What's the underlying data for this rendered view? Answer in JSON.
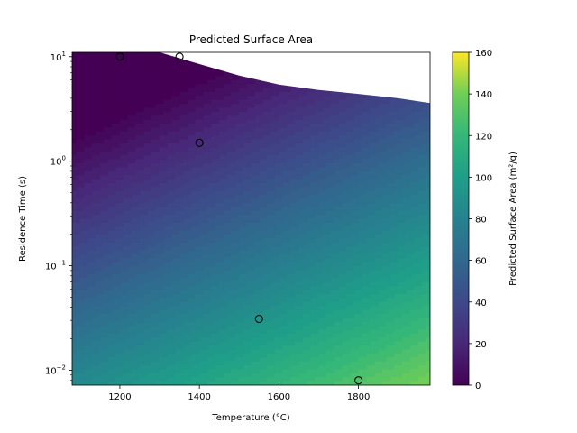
{
  "chart_data": {
    "type": "heatmap",
    "subtype": "filled-contour",
    "title": "Predicted Surface Area",
    "xlabel": "Temperature (°C)",
    "ylabel": "Residence Time (s)",
    "colorbar_label": "Predicted Surface Area (m²/g)",
    "xlim": [
      1080,
      1980
    ],
    "ylim": [
      0.0072,
      11
    ],
    "yscale": "log",
    "x_ticks": [
      1200,
      1400,
      1600,
      1800
    ],
    "x_tick_labels": [
      "1200",
      "1400",
      "1600",
      "1800"
    ],
    "y_ticks": [
      0.01,
      0.1,
      1,
      10
    ],
    "y_tick_labels": [
      "10",
      "10",
      "10",
      "10"
    ],
    "y_tick_exponents": [
      "−2",
      "−1",
      "0",
      "1"
    ],
    "colorbar_range": [
      0,
      160
    ],
    "colorbar_ticks": [
      0,
      20,
      40,
      60,
      80,
      100,
      120,
      140,
      160
    ],
    "colorbar_tick_labels": [
      "0",
      "20",
      "40",
      "60",
      "80",
      "100",
      "120",
      "140",
      "160"
    ],
    "colormap": "viridis",
    "grid": false,
    "masked_region_boundary": [
      {
        "x": 1080,
        "y": 11
      },
      {
        "x": 1300,
        "y": 11
      },
      {
        "x": 1400,
        "y": 8.5
      },
      {
        "x": 1500,
        "y": 6.6
      },
      {
        "x": 1600,
        "y": 5.4
      },
      {
        "x": 1700,
        "y": 4.8
      },
      {
        "x": 1800,
        "y": 4.4
      },
      {
        "x": 1900,
        "y": 4.0
      },
      {
        "x": 1980,
        "y": 3.6
      }
    ],
    "observed_points": [
      {
        "x": 1200,
        "y": 10
      },
      {
        "x": 1350,
        "y": 10
      },
      {
        "x": 1400,
        "y": 1.5
      },
      {
        "x": 1550,
        "y": 0.031
      },
      {
        "x": 1800,
        "y": 0.008
      }
    ]
  }
}
